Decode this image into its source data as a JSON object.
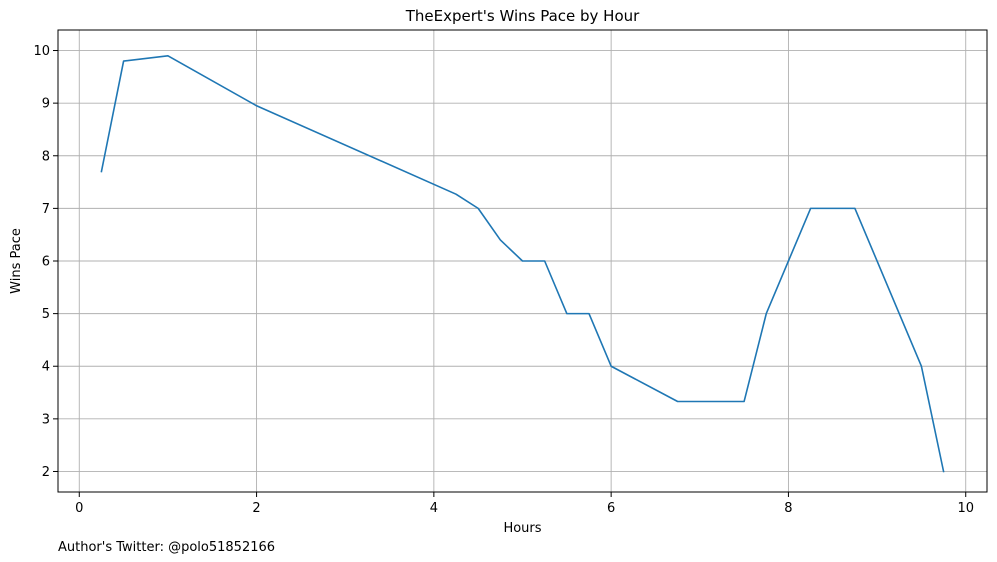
{
  "chart_data": {
    "type": "line",
    "title": "TheExpert's Wins Pace by Hour",
    "xlabel": "Hours",
    "ylabel": "Wins Pace",
    "xlim": [
      -0.24,
      10.24
    ],
    "ylim": [
      1.61,
      10.39
    ],
    "xticks": [
      0,
      2,
      4,
      6,
      8,
      10
    ],
    "yticks": [
      2,
      3,
      4,
      5,
      6,
      7,
      8,
      9,
      10
    ],
    "grid": true,
    "series": [
      {
        "color": "#1f77b4",
        "x": [
          0.25,
          0.5,
          1.0,
          2.0,
          4.25,
          4.5,
          4.75,
          5.0,
          5.25,
          5.5,
          5.75,
          6.0,
          6.75,
          7.5,
          7.75,
          8.25,
          8.75,
          9.5,
          9.75
        ],
        "y": [
          7.7,
          9.8,
          9.9,
          8.95,
          7.27,
          7.0,
          6.4,
          6.0,
          6.0,
          5.0,
          5.0,
          4.0,
          3.33,
          3.33,
          5.0,
          7.0,
          7.0,
          4.0,
          2.0
        ]
      }
    ]
  },
  "footnote": "Author's Twitter: @polo51852166"
}
